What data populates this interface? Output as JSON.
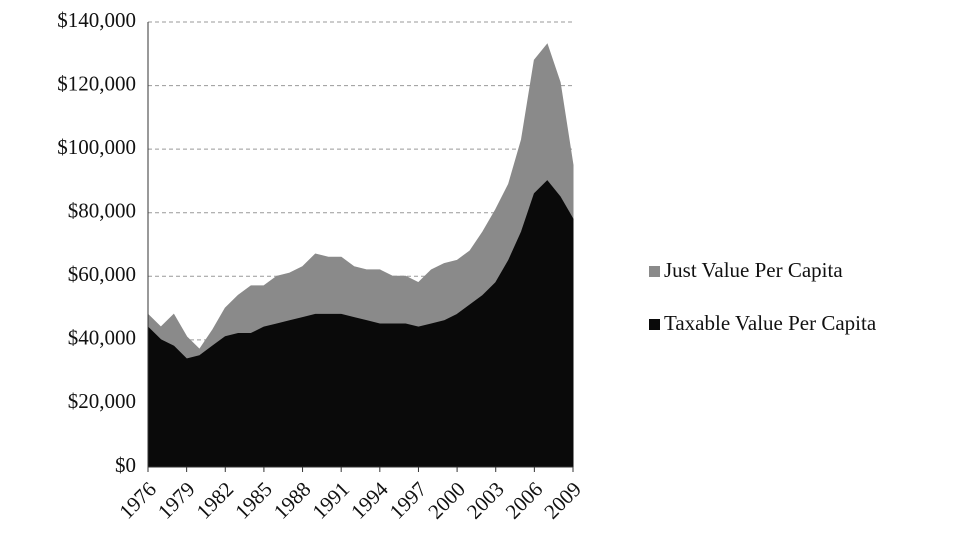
{
  "chart_data": {
    "type": "area",
    "x": [
      1976,
      1977,
      1978,
      1979,
      1980,
      1981,
      1982,
      1983,
      1984,
      1985,
      1986,
      1987,
      1988,
      1989,
      1990,
      1991,
      1992,
      1993,
      1994,
      1995,
      1996,
      1997,
      1998,
      1999,
      2000,
      2001,
      2002,
      2003,
      2004,
      2005,
      2006,
      2007,
      2008,
      2009
    ],
    "xlim": [
      1976,
      2009
    ],
    "xticks": [
      1976,
      1979,
      1982,
      1985,
      1988,
      1991,
      1994,
      1997,
      2000,
      2003,
      2006,
      2009
    ],
    "series": [
      {
        "name": "Just Value Per Capita",
        "color": "#8a8a8a",
        "values": [
          48000,
          44000,
          48000,
          41000,
          37000,
          43000,
          50000,
          54000,
          57000,
          57000,
          60000,
          61000,
          63000,
          67000,
          66000,
          66000,
          63000,
          62000,
          62000,
          60000,
          60000,
          58000,
          62000,
          64000,
          65000,
          68000,
          74000,
          81000,
          89000,
          103000,
          128000,
          133000,
          121000,
          95000
        ]
      },
      {
        "name": "Taxable Value Per Capita",
        "color": "#0a0a0a",
        "values": [
          44000,
          40000,
          38000,
          34000,
          35000,
          38000,
          41000,
          42000,
          42000,
          44000,
          45000,
          46000,
          47000,
          48000,
          48000,
          48000,
          47000,
          46000,
          45000,
          45000,
          45000,
          44000,
          45000,
          46000,
          48000,
          51000,
          54000,
          58000,
          65000,
          74000,
          86000,
          90000,
          85000,
          78000
        ]
      }
    ],
    "ylim": [
      0,
      140000
    ],
    "yticks": [
      {
        "value": 0,
        "label": "$0"
      },
      {
        "value": 20000,
        "label": "$20,000"
      },
      {
        "value": 40000,
        "label": "$40,000"
      },
      {
        "value": 60000,
        "label": "$60,000"
      },
      {
        "value": 80000,
        "label": "$80,000"
      },
      {
        "value": 100000,
        "label": "$100,000"
      },
      {
        "value": 120000,
        "label": "$120,000"
      },
      {
        "value": 140000,
        "label": "$140,000"
      }
    ],
    "grid": true,
    "legend": "right"
  }
}
